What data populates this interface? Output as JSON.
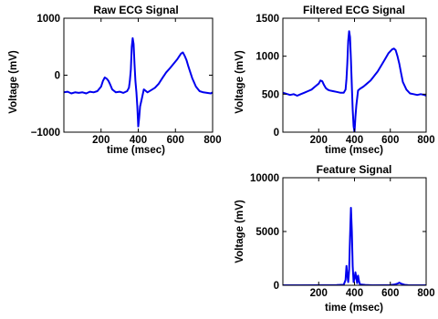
{
  "chart_data": [
    {
      "type": "line",
      "title": "Raw ECG Signal",
      "xlabel": "time (msec)",
      "ylabel": "Voltage (mV)",
      "xlim": [
        0,
        800
      ],
      "ylim": [
        -1000,
        1000
      ],
      "xticks": [
        200,
        400,
        600,
        800
      ],
      "yticks": [
        -1000,
        0,
        1000
      ],
      "ytick_labels": [
        "−1000",
        "0",
        "1000"
      ],
      "series": [
        {
          "color": "#0000ee",
          "x": [
            0,
            20,
            40,
            60,
            80,
            100,
            120,
            140,
            160,
            180,
            200,
            210,
            220,
            230,
            240,
            250,
            260,
            280,
            300,
            320,
            340,
            350,
            355,
            360,
            365,
            370,
            375,
            380,
            385,
            390,
            395,
            400,
            405,
            410,
            420,
            430,
            450,
            470,
            490,
            510,
            530,
            550,
            570,
            590,
            610,
            620,
            630,
            640,
            650,
            660,
            670,
            690,
            710,
            730,
            750,
            770,
            790,
            800
          ],
          "y": [
            -300,
            -290,
            -320,
            -300,
            -310,
            -300,
            -320,
            -290,
            -300,
            -280,
            -200,
            -100,
            -40,
            -60,
            -100,
            -170,
            -250,
            -300,
            -290,
            -310,
            -280,
            -220,
            -100,
            100,
            500,
            650,
            550,
            200,
            -100,
            -300,
            -550,
            -900,
            -750,
            -550,
            -400,
            -250,
            -300,
            -260,
            -220,
            -150,
            -50,
            50,
            120,
            200,
            280,
            330,
            380,
            400,
            340,
            260,
            150,
            -50,
            -200,
            -280,
            -300,
            -310,
            -320,
            -300
          ]
        }
      ]
    },
    {
      "type": "line",
      "title": "Filtered ECG Signal",
      "xlabel": "time (msec)",
      "ylabel": "Voltage (mV)",
      "xlim": [
        0,
        800
      ],
      "ylim": [
        0,
        1500
      ],
      "xticks": [
        200,
        400,
        600,
        800
      ],
      "yticks": [
        0,
        500,
        1000,
        1500
      ],
      "ytick_labels": [
        "0",
        "500",
        "1000",
        "1500"
      ],
      "series": [
        {
          "color": "#0000ee",
          "x": [
            0,
            20,
            40,
            60,
            80,
            100,
            120,
            140,
            160,
            180,
            200,
            210,
            220,
            230,
            240,
            250,
            260,
            280,
            300,
            320,
            340,
            350,
            355,
            360,
            365,
            370,
            375,
            380,
            385,
            390,
            395,
            400,
            405,
            410,
            420,
            430,
            450,
            470,
            490,
            510,
            530,
            550,
            570,
            590,
            610,
            620,
            630,
            640,
            650,
            660,
            670,
            690,
            710,
            730,
            750,
            770,
            790,
            800
          ],
          "y": [
            520,
            505,
            490,
            500,
            480,
            500,
            520,
            540,
            560,
            600,
            640,
            680,
            670,
            620,
            580,
            560,
            550,
            540,
            530,
            520,
            520,
            560,
            700,
            900,
            1200,
            1330,
            1250,
            950,
            600,
            300,
            80,
            0,
            200,
            350,
            550,
            570,
            600,
            640,
            680,
            740,
            800,
            880,
            960,
            1040,
            1090,
            1100,
            1080,
            1000,
            900,
            780,
            660,
            560,
            510,
            500,
            490,
            500,
            490,
            480
          ]
        }
      ]
    },
    {
      "type": "line",
      "title": "Feature Signal",
      "xlabel": "time (msec)",
      "ylabel": "Voltage (mV)",
      "xlim": [
        0,
        800
      ],
      "ylim": [
        0,
        10000
      ],
      "xticks": [
        200,
        400,
        600,
        800
      ],
      "yticks": [
        0,
        5000,
        10000
      ],
      "ytick_labels": [
        "0",
        "5000",
        "10000"
      ],
      "series": [
        {
          "color": "#0000ee",
          "x": [
            0,
            100,
            200,
            300,
            340,
            350,
            355,
            360,
            365,
            370,
            375,
            380,
            385,
            390,
            395,
            400,
            405,
            410,
            415,
            420,
            425,
            430,
            440,
            460,
            500,
            560,
            600,
            620,
            640,
            650,
            660,
            680,
            700,
            750,
            800
          ],
          "y": [
            0,
            0,
            10,
            20,
            50,
            500,
            1800,
            1000,
            300,
            1400,
            4500,
            7200,
            5000,
            1800,
            300,
            600,
            1200,
            700,
            200,
            900,
            400,
            100,
            60,
            30,
            0,
            10,
            20,
            60,
            150,
            250,
            150,
            40,
            10,
            0,
            0
          ]
        }
      ]
    }
  ]
}
